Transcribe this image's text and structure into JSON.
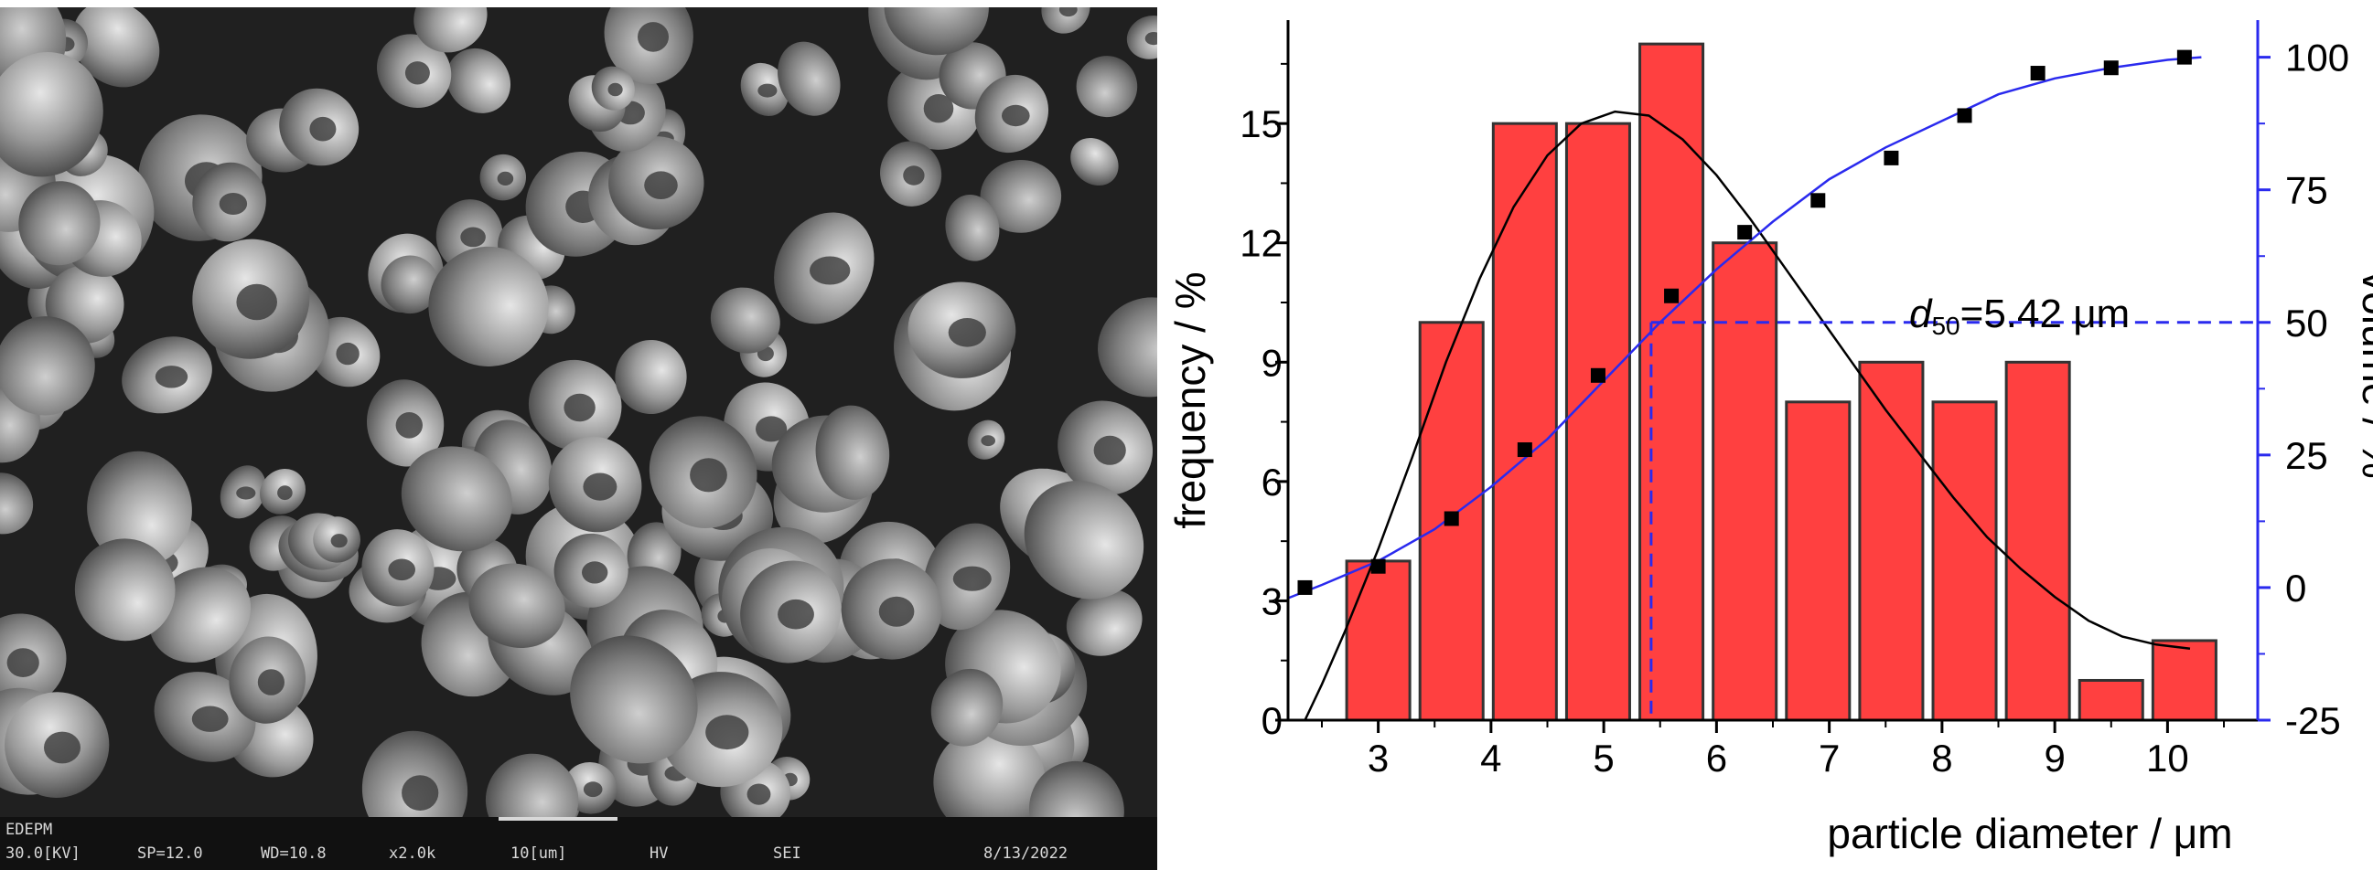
{
  "sem_image": {
    "description_icon": "sem-micrograph-particles",
    "info_bar": {
      "detector": "EDEPM",
      "voltage": "30.0[KV]",
      "spot": "SP=12.0",
      "wd": "WD=10.8",
      "mag": "x2.0k",
      "scale": "10[um]",
      "mode": "HV",
      "signal": "SEI",
      "date": "8/13/2022"
    }
  },
  "chart_data": {
    "type": "bar",
    "xlabel": "particle diameter / μm",
    "ylabel": "frequency / %",
    "y2label": "volume / %",
    "xlim": [
      2.2,
      10.8
    ],
    "ylim": [
      0,
      17.6
    ],
    "y2lim": [
      -25,
      107
    ],
    "xticks": [
      "3",
      "4",
      "5",
      "6",
      "7",
      "8",
      "9",
      "10"
    ],
    "yticks": [
      "0",
      "3",
      "6",
      "9",
      "12",
      "15"
    ],
    "y2ticks": [
      "-25",
      "0",
      "25",
      "50",
      "75",
      "100"
    ],
    "bar_width": 0.56,
    "bar_color": "#ff4040",
    "bars": {
      "x": [
        3.0,
        3.65,
        4.3,
        4.95,
        5.6,
        6.25,
        6.9,
        7.55,
        8.2,
        8.85,
        9.5,
        10.15
      ],
      "values": [
        4,
        10,
        15,
        15,
        17,
        12,
        8,
        9,
        8,
        9,
        1,
        2
      ]
    },
    "fit_curve": {
      "color": "#000000",
      "x": [
        2.35,
        2.5,
        2.7,
        3.0,
        3.3,
        3.6,
        3.9,
        4.2,
        4.5,
        4.8,
        5.1,
        5.4,
        5.7,
        6.0,
        6.3,
        6.6,
        6.9,
        7.2,
        7.5,
        7.8,
        8.1,
        8.4,
        8.7,
        9.0,
        9.3,
        9.6,
        9.9,
        10.2
      ],
      "y": [
        0,
        0.9,
        2.2,
        4.3,
        6.6,
        9.0,
        11.1,
        12.9,
        14.2,
        15.0,
        15.3,
        15.2,
        14.6,
        13.7,
        12.6,
        11.4,
        10.2,
        9.0,
        7.8,
        6.7,
        5.6,
        4.6,
        3.8,
        3.1,
        2.5,
        2.1,
        1.9,
        1.8
      ]
    },
    "cumulative": {
      "color": "#2a2aee",
      "x": [
        2.35,
        3.0,
        3.65,
        4.3,
        4.95,
        5.6,
        6.25,
        6.9,
        7.55,
        8.2,
        8.85,
        9.5,
        10.15
      ],
      "values": [
        0,
        4,
        13,
        26,
        40,
        55,
        67,
        73,
        81,
        89,
        97,
        98,
        100
      ],
      "curve_x": [
        2.2,
        2.5,
        3.0,
        3.5,
        4.0,
        4.5,
        5.0,
        5.5,
        6.0,
        6.5,
        7.0,
        7.5,
        8.0,
        8.5,
        9.0,
        9.5,
        10.0,
        10.3
      ],
      "curve_y": [
        -2,
        0.5,
        5,
        11,
        19,
        28,
        39,
        50,
        60,
        69,
        77,
        83,
        88,
        93,
        96,
        98,
        99.5,
        100
      ]
    },
    "d50": {
      "x": 5.42,
      "y2": 50,
      "label_symbol": "d",
      "label_sub": "50",
      "label_value": "=5.42 μm"
    }
  }
}
